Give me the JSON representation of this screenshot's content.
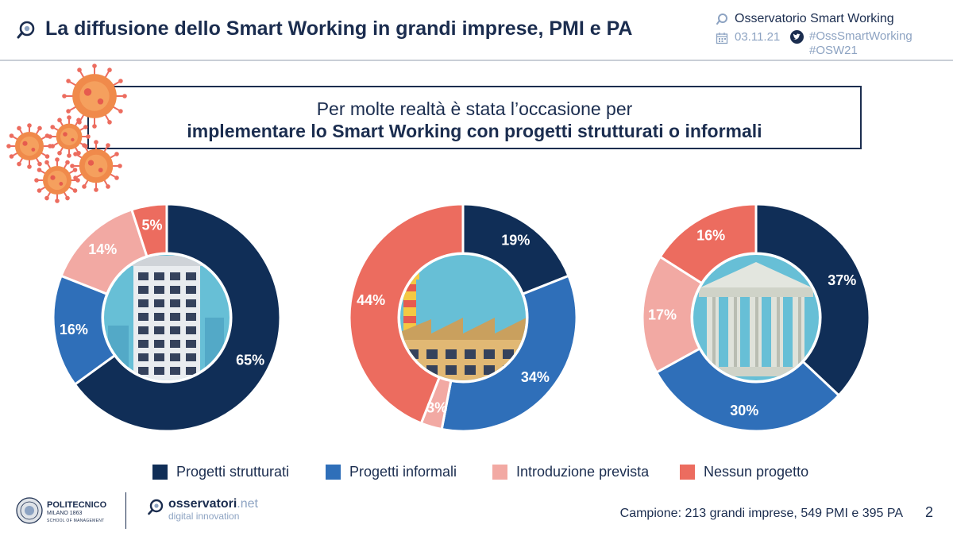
{
  "header": {
    "title": "La diffusione dello Smart Working in grandi imprese, PMI e PA",
    "org_name": "Osservatorio Smart Working",
    "date": "03.11.21",
    "hashtags": [
      "#OssSmartWorking",
      "#OSW21"
    ]
  },
  "callout": {
    "line1": "Per molte realtà è stata l’occasione per",
    "line2": "implementare lo Smart Working con progetti strutturati o informali"
  },
  "colors": {
    "navy": "#102e57",
    "blue": "#2f6fb9",
    "pink": "#f2a9a3",
    "red": "#ec6c5f",
    "title_text": "#1b2d4f",
    "muted_text": "#8da3c2"
  },
  "chart_data": [
    {
      "type": "pie",
      "center_icon": "office-building-icon",
      "categories": [
        "Progetti strutturati",
        "Progetti informali",
        "Introduzione prevista",
        "Nessun progetto"
      ],
      "values": [
        65,
        16,
        14,
        5
      ],
      "labels": [
        "65%",
        "16%",
        "14%",
        "5%"
      ]
    },
    {
      "type": "pie",
      "center_icon": "factory-icon",
      "categories": [
        "Progetti strutturati",
        "Progetti informali",
        "Introduzione prevista",
        "Nessun progetto"
      ],
      "values": [
        19,
        34,
        3,
        44
      ],
      "labels": [
        "19%",
        "34%",
        "3%",
        "44%"
      ]
    },
    {
      "type": "pie",
      "center_icon": "government-building-icon",
      "categories": [
        "Progetti strutturati",
        "Progetti informali",
        "Introduzione prevista",
        "Nessun progetto"
      ],
      "values": [
        37,
        30,
        17,
        16
      ],
      "labels": [
        "37%",
        "30%",
        "17%",
        "16%"
      ]
    }
  ],
  "legend": [
    {
      "label": "Progetti strutturati",
      "color": "#102e57"
    },
    {
      "label": "Progetti informali",
      "color": "#2f6fb9"
    },
    {
      "label": "Introduzione prevista",
      "color": "#f2a9a3"
    },
    {
      "label": "Nessun progetto",
      "color": "#ec6c5f"
    }
  ],
  "footer": {
    "sample_note": "Campione: 213 grandi imprese, 549 PMI e 395 PA",
    "page_number": "2",
    "polimi_name": "POLITECNICO",
    "polimi_sub": "MILANO 1863",
    "polimi_school": "SCHOOL OF MANAGEMENT",
    "oss_name": "osservatori",
    "oss_net": ".net",
    "oss_sub": "digital innovation"
  }
}
